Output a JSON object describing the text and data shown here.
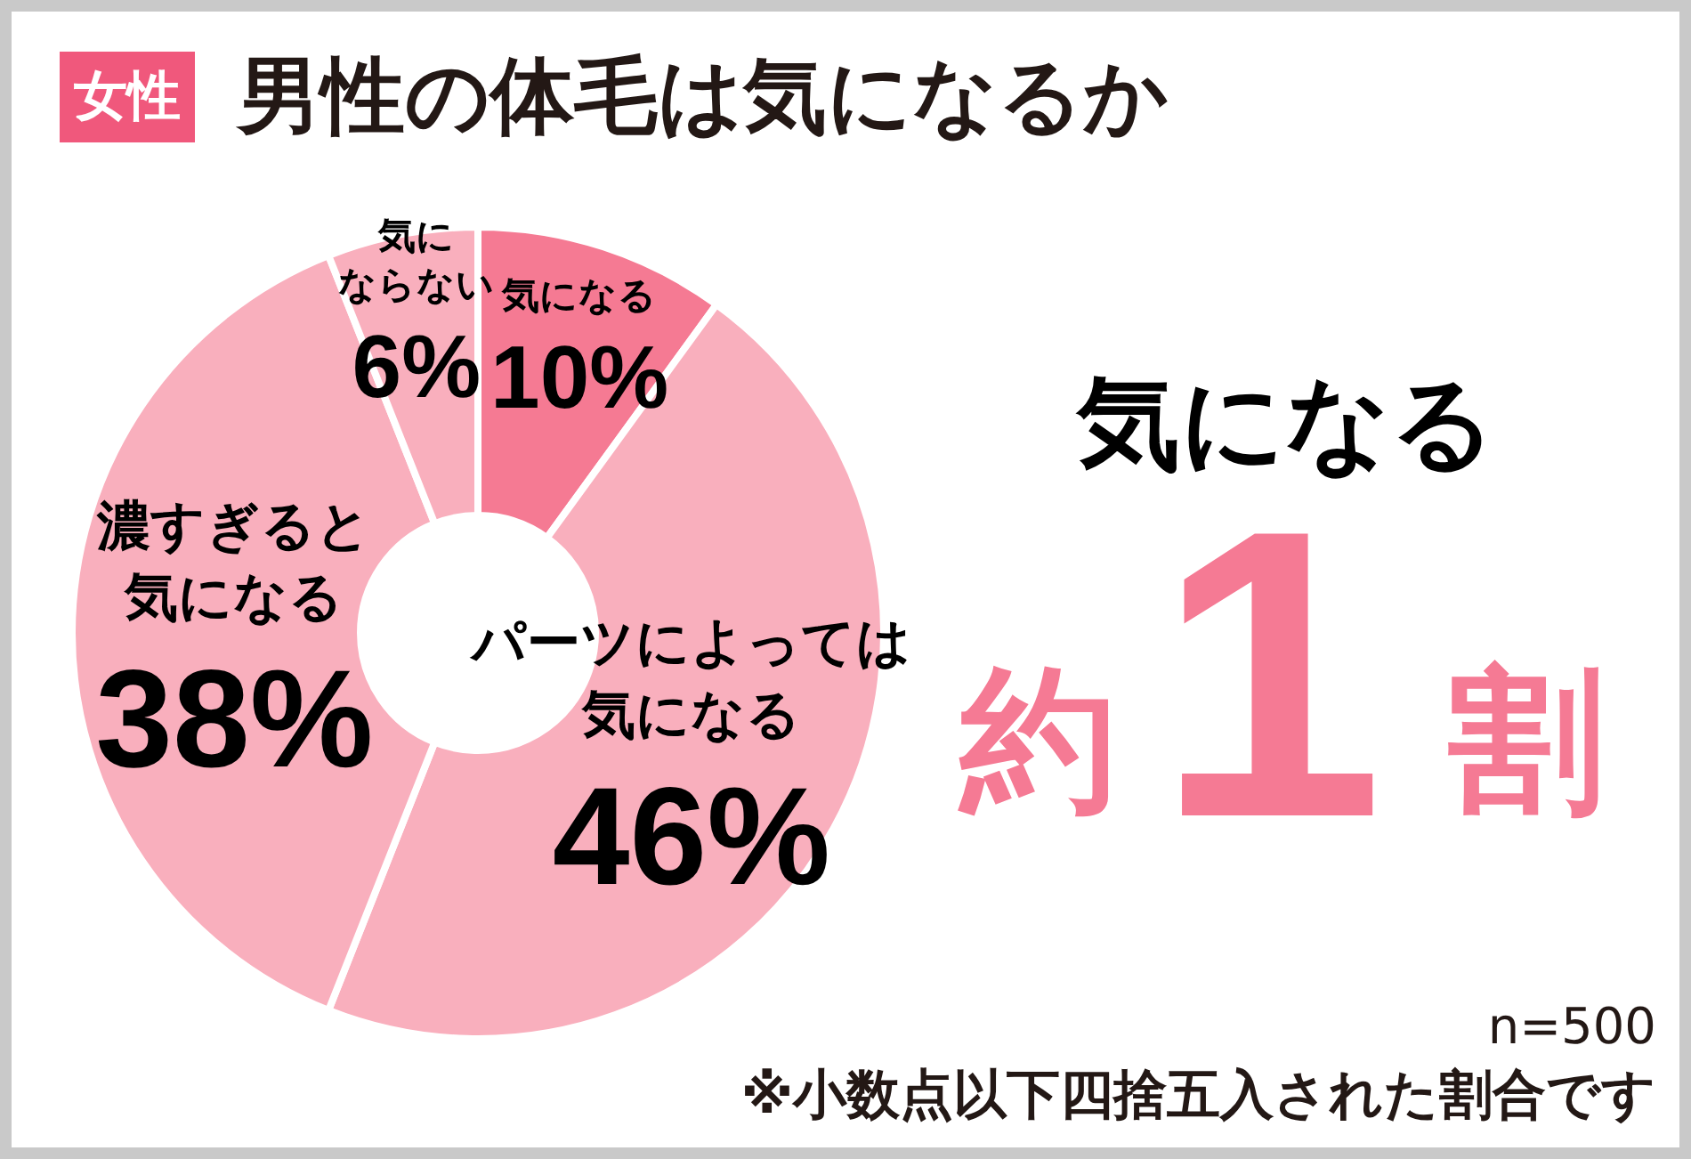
{
  "chart_data": {
    "type": "donut",
    "title": "男性の体毛は気になるか",
    "subtitle": "女性",
    "categories": [
      "気になる",
      "パーツによっては気になる",
      "濃すぎると気になる",
      "気にならない"
    ],
    "values": [
      10,
      46,
      38,
      6
    ],
    "colors": [
      "#f57a93",
      "#f9afbd",
      "#f9afbd",
      "#f9afbd"
    ],
    "value_labels": [
      "10%",
      "46%",
      "38%",
      "6%"
    ],
    "annotations": [
      "気になる",
      "約",
      "1",
      "割",
      "n=500",
      "※小数点以下四捨五入された割合です"
    ]
  }
}
